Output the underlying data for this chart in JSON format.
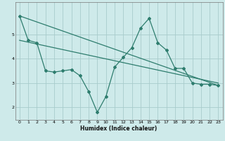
{
  "xlabel": "Humidex (Indice chaleur)",
  "background_color": "#ceeaea",
  "grid_color": "#a8cccc",
  "line_color": "#2e7d6e",
  "xlim": [
    -0.5,
    23.5
  ],
  "ylim": [
    1.5,
    6.3
  ],
  "xticks": [
    0,
    1,
    2,
    3,
    4,
    5,
    6,
    7,
    8,
    9,
    10,
    11,
    12,
    13,
    14,
    15,
    16,
    17,
    18,
    19,
    20,
    21,
    22,
    23
  ],
  "yticks": [
    2,
    3,
    4,
    5
  ],
  "line1_x": [
    0,
    1,
    2,
    3,
    4,
    5,
    6,
    7,
    8,
    9,
    10,
    11,
    12,
    13,
    14,
    15,
    16,
    17,
    18,
    19,
    20,
    21,
    22,
    23
  ],
  "line1_y": [
    5.75,
    4.75,
    4.65,
    3.5,
    3.45,
    3.5,
    3.55,
    3.3,
    2.65,
    1.8,
    2.45,
    3.65,
    4.05,
    4.45,
    5.25,
    5.65,
    4.65,
    4.35,
    3.6,
    3.6,
    3.0,
    2.95,
    2.95,
    2.9
  ],
  "line2_x": [
    0,
    23
  ],
  "line2_y": [
    4.75,
    3.0
  ],
  "line3_x": [
    0,
    23
  ],
  "line3_y": [
    5.75,
    2.9
  ]
}
